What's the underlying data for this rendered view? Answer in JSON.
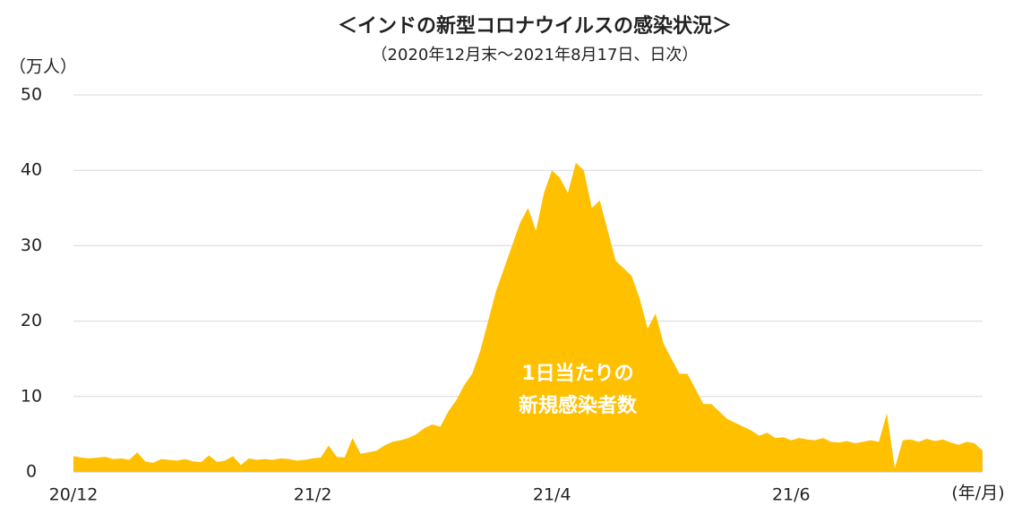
{
  "chart_data": {
    "type": "area",
    "title": "＜インドの新型コロナウイルスの感染状況＞",
    "subtitle": "（2020年12月末～2021年8月17日、日次）",
    "y_label": "（万人）",
    "x_label": "(年/月)",
    "annotation": [
      "1日当たりの",
      "新規感染者数"
    ],
    "categories": [
      "20/12",
      null,
      null,
      null,
      null,
      null,
      null,
      null,
      null,
      null,
      null,
      null,
      null,
      null,
      null,
      null,
      null,
      null,
      null,
      null,
      null,
      null,
      null,
      null,
      null,
      null,
      null,
      null,
      null,
      null,
      "21/2",
      null,
      null,
      null,
      null,
      null,
      null,
      null,
      null,
      null,
      null,
      null,
      null,
      null,
      null,
      null,
      null,
      null,
      null,
      null,
      null,
      null,
      null,
      null,
      null,
      null,
      null,
      null,
      null,
      null,
      "21/4",
      null,
      null,
      null,
      null,
      null,
      null,
      null,
      null,
      null,
      null,
      null,
      null,
      null,
      null,
      null,
      null,
      null,
      null,
      null,
      null,
      null,
      null,
      null,
      null,
      null,
      null,
      null,
      null,
      null,
      "21/6",
      null,
      null,
      null,
      null,
      null,
      null,
      null,
      null,
      null,
      null,
      null,
      null,
      null,
      null,
      null,
      null,
      null,
      null,
      null,
      null,
      null,
      null,
      null,
      null
    ],
    "series": [
      {
        "name": "1日当たりの新規感染者数",
        "color": "#FFC000",
        "values": [
          2.1,
          1.9,
          1.8,
          1.9,
          2.0,
          1.7,
          1.8,
          1.6,
          2.6,
          1.4,
          1.2,
          1.7,
          1.6,
          1.5,
          1.7,
          1.4,
          1.3,
          2.2,
          1.3,
          1.5,
          2.1,
          0.9,
          1.8,
          1.6,
          1.7,
          1.6,
          1.8,
          1.7,
          1.5,
          1.6,
          1.8,
          1.9,
          3.5,
          2.0,
          1.9,
          4.5,
          2.4,
          2.6,
          2.8,
          3.5,
          4.0,
          4.2,
          4.5,
          5.0,
          5.8,
          6.3,
          6.0,
          8,
          9.5,
          11.5,
          13,
          16,
          20,
          24,
          27,
          30,
          33,
          35,
          32,
          37,
          40,
          39,
          37,
          41,
          40,
          35,
          36,
          32,
          28,
          27,
          26,
          23,
          19,
          21,
          17,
          15,
          13,
          13,
          11,
          9,
          9,
          8,
          7,
          6.5,
          6,
          5.5,
          4.8,
          5.2,
          4.5,
          4.6,
          4.2,
          4.5,
          4.3,
          4.2,
          4.5,
          4.0,
          3.9,
          4.1,
          3.8,
          4.0,
          4.2,
          4.0,
          7.8,
          0.5,
          4.2,
          4.3,
          4.0,
          4.4,
          4.1,
          4.3,
          3.9,
          3.6,
          4.0,
          3.8,
          2.8
        ]
      }
    ],
    "ylim": [
      0,
      50
    ],
    "yticks": [
      0,
      10,
      20,
      30,
      40,
      50
    ],
    "grid": true
  }
}
